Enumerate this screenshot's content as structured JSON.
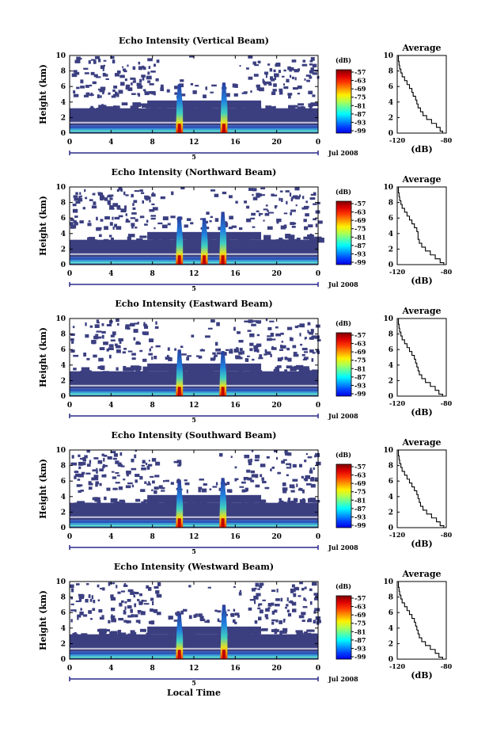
{
  "xlabel": "Local Time",
  "date_label": "Jul 2008",
  "day_label": "5",
  "colorbar_unit": "(dB)",
  "avg_xlabel": "(dB)",
  "chart_data": [
    {
      "type": "heatmap",
      "title": "Echo Intensity (Vertical Beam)",
      "xlabel": "Local Time",
      "ylabel": "Height (km)",
      "xlim": [
        0,
        24
      ],
      "ylim": [
        0,
        10
      ],
      "xticks": [
        "0",
        "4",
        "8",
        "12",
        "16",
        "20",
        "0"
      ],
      "yticks": [
        "0",
        "2",
        "4",
        "6",
        "8",
        "10"
      ],
      "colorbar_ticks": [
        "-57",
        "-63",
        "-69",
        "-75",
        "-81",
        "-87",
        "-93",
        "-99"
      ],
      "plumes": [
        [
          10.6,
          6.3
        ],
        [
          14.9,
          6.5
        ]
      ],
      "average": {
        "title": "Average",
        "xlabel": "(dB)",
        "xlim": [
          -120,
          -80
        ],
        "xticks": [
          "-120",
          "-80"
        ],
        "yticks": [
          "0",
          "2",
          "4",
          "6",
          "8",
          "10"
        ],
        "x": [
          -83,
          -85,
          -88,
          -92,
          -96,
          -99,
          -101,
          -103,
          -104,
          -105,
          -107,
          -108,
          -110,
          -112,
          -114,
          -116,
          -117,
          -118,
          -118.5,
          -119,
          -119
        ],
        "y": [
          0,
          0.5,
          1,
          1.5,
          2,
          2.5,
          3,
          3.5,
          4,
          4.5,
          5,
          5.5,
          6,
          6.5,
          7,
          7.5,
          8,
          8.5,
          9,
          9.5,
          10
        ]
      }
    },
    {
      "type": "heatmap",
      "title": "Echo Intensity (Northward Beam)",
      "xlabel": "Local Time",
      "ylabel": "Height (km)",
      "xlim": [
        0,
        24
      ],
      "ylim": [
        0,
        10
      ],
      "xticks": [
        "0",
        "4",
        "8",
        "12",
        "16",
        "20",
        "0"
      ],
      "yticks": [
        "0",
        "2",
        "4",
        "6",
        "8",
        "10"
      ],
      "colorbar_ticks": [
        "-57",
        "-63",
        "-69",
        "-75",
        "-81",
        "-87",
        "-93",
        "-99"
      ],
      "plumes": [
        [
          10.6,
          6.2
        ],
        [
          13.0,
          6.0
        ],
        [
          14.8,
          6.8
        ]
      ],
      "average": {
        "title": "Average",
        "xlabel": "(dB)",
        "xlim": [
          -120,
          -80
        ],
        "xticks": [
          "-120",
          "-80"
        ],
        "yticks": [
          "0",
          "2",
          "4",
          "6",
          "8",
          "10"
        ],
        "x": [
          -82,
          -85,
          -89,
          -93,
          -97,
          -100,
          -102,
          -103,
          -103,
          -104,
          -106,
          -108,
          -110,
          -112,
          -114,
          -116,
          -117,
          -118,
          -118.5,
          -119,
          -119
        ],
        "y": [
          0,
          0.5,
          1,
          1.5,
          2,
          2.5,
          3,
          3.5,
          4,
          4.5,
          5,
          5.5,
          6,
          6.5,
          7,
          7.5,
          8,
          8.5,
          9,
          9.5,
          10
        ]
      }
    },
    {
      "type": "heatmap",
      "title": "Echo Intensity (Eastward Beam)",
      "xlabel": "Local Time",
      "ylabel": "Height (km)",
      "xlim": [
        0,
        24
      ],
      "ylim": [
        0,
        10
      ],
      "xticks": [
        "0",
        "4",
        "8",
        "12",
        "16",
        "20",
        "0"
      ],
      "yticks": [
        "0",
        "2",
        "4",
        "6",
        "8",
        "10"
      ],
      "colorbar_ticks": [
        "-57",
        "-63",
        "-69",
        "-75",
        "-81",
        "-87",
        "-93",
        "-99"
      ],
      "plumes": [
        [
          10.6,
          6.0
        ],
        [
          14.8,
          5.8
        ]
      ],
      "average": {
        "title": "Average",
        "xlabel": "(dB)",
        "xlim": [
          -120,
          -80
        ],
        "xticks": [
          "-120",
          "-80"
        ],
        "yticks": [
          "0",
          "2",
          "4",
          "6",
          "8",
          "10"
        ],
        "x": [
          -83,
          -86,
          -89,
          -93,
          -97,
          -100,
          -102,
          -103,
          -104,
          -105,
          -106,
          -108,
          -110,
          -112,
          -114,
          -116,
          -117,
          -118,
          -118.5,
          -119,
          -119
        ],
        "y": [
          0,
          0.5,
          1,
          1.5,
          2,
          2.5,
          3,
          3.5,
          4,
          4.5,
          5,
          5.5,
          6,
          6.5,
          7,
          7.5,
          8,
          8.5,
          9,
          9.5,
          10
        ]
      }
    },
    {
      "type": "heatmap",
      "title": "Echo Intensity (Southward Beam)",
      "xlabel": "Local Time",
      "ylabel": "Height (km)",
      "xlim": [
        0,
        24
      ],
      "ylim": [
        0,
        10
      ],
      "xticks": [
        "0",
        "4",
        "8",
        "12",
        "16",
        "20",
        "0"
      ],
      "yticks": [
        "0",
        "2",
        "4",
        "6",
        "8",
        "10"
      ],
      "colorbar_ticks": [
        "-57",
        "-63",
        "-69",
        "-75",
        "-81",
        "-87",
        "-93",
        "-99"
      ],
      "plumes": [
        [
          10.6,
          6.0
        ],
        [
          14.8,
          6.4
        ]
      ],
      "average": {
        "title": "Average",
        "xlabel": "(dB)",
        "xlim": [
          -120,
          -80
        ],
        "xticks": [
          "-120",
          "-80"
        ],
        "yticks": [
          "0",
          "2",
          "4",
          "6",
          "8",
          "10"
        ],
        "x": [
          -82,
          -85,
          -88,
          -92,
          -96,
          -99,
          -101,
          -102,
          -103,
          -104,
          -106,
          -108,
          -110,
          -112,
          -114,
          -116,
          -117,
          -118,
          -118.5,
          -119,
          -119
        ],
        "y": [
          0,
          0.5,
          1,
          1.5,
          2,
          2.5,
          3,
          3.5,
          4,
          4.5,
          5,
          5.5,
          6,
          6.5,
          7,
          7.5,
          8,
          8.5,
          9,
          9.5,
          10
        ]
      }
    },
    {
      "type": "heatmap",
      "title": "Echo Intensity (Westward Beam)",
      "xlabel": "Local Time",
      "ylabel": "Height (km)",
      "xlim": [
        0,
        24
      ],
      "ylim": [
        0,
        10
      ],
      "xticks": [
        "0",
        "4",
        "8",
        "12",
        "16",
        "20",
        "0"
      ],
      "yticks": [
        "0",
        "2",
        "4",
        "6",
        "8",
        "10"
      ],
      "colorbar_ticks": [
        "-57",
        "-63",
        "-69",
        "-75",
        "-81",
        "-87",
        "-93",
        "-99"
      ],
      "plumes": [
        [
          10.6,
          5.8
        ],
        [
          14.9,
          7.0
        ]
      ],
      "average": {
        "title": "Average",
        "xlabel": "(dB)",
        "xlim": [
          -120,
          -80
        ],
        "xticks": [
          "-120",
          "-80"
        ],
        "yticks": [
          "0",
          "2",
          "4",
          "6",
          "8",
          "10"
        ],
        "x": [
          -83,
          -86,
          -89,
          -93,
          -97,
          -100,
          -102,
          -103,
          -104,
          -105,
          -106,
          -108,
          -110,
          -112,
          -114,
          -116,
          -117,
          -118,
          -118.5,
          -119,
          -119
        ],
        "y": [
          0,
          0.5,
          1,
          1.5,
          2,
          2.5,
          3,
          3.5,
          4,
          4.5,
          5,
          5.5,
          6,
          6.5,
          7,
          7.5,
          8,
          8.5,
          9,
          9.5,
          10
        ]
      }
    }
  ]
}
